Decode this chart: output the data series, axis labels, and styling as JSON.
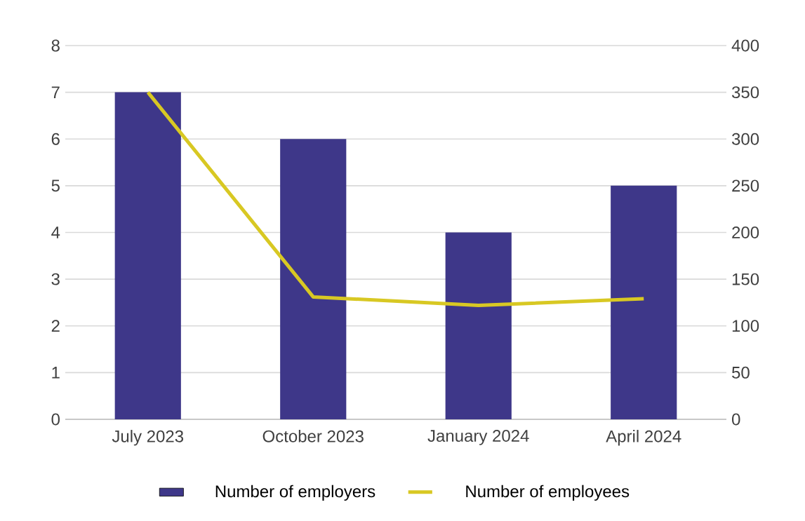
{
  "chart_data": {
    "type": "bar",
    "categories": [
      "July 2023",
      "October 2023",
      "January 2024",
      "April 2024"
    ],
    "series": [
      {
        "name": "Number of employers",
        "color": "#3e3789",
        "values": [
          7,
          6,
          4,
          5
        ]
      },
      {
        "name": "Number of employees",
        "type": "line",
        "axis": "y2",
        "color": "#d8c823",
        "values": [
          350,
          131,
          122,
          129
        ]
      }
    ],
    "ylim": [
      0,
      8
    ],
    "yticks": [
      0,
      1,
      2,
      3,
      4,
      5,
      6,
      7,
      8
    ],
    "y2lim": [
      0,
      400
    ],
    "y2ticks": [
      0,
      50,
      100,
      150,
      200,
      250,
      300,
      350,
      400
    ],
    "grid": "y",
    "legend": "bottom"
  }
}
